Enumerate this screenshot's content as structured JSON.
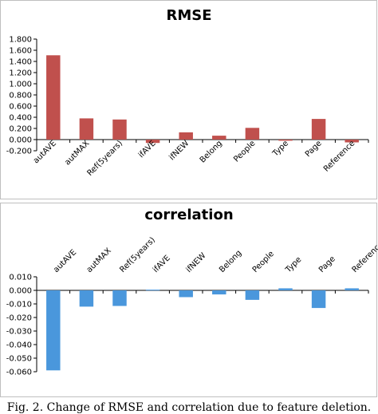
{
  "chart_data": [
    {
      "type": "bar",
      "title": "RMSE",
      "categories": [
        "autAVE",
        "autMAX",
        "Ref(5years)",
        "ifAVE",
        "ifNEW",
        "Belong",
        "People",
        "Type",
        "Page",
        "Reference"
      ],
      "values": [
        1.51,
        0.38,
        0.36,
        -0.06,
        0.13,
        0.07,
        0.21,
        -0.02,
        0.37,
        -0.05
      ],
      "ylim": [
        -0.2,
        1.8
      ],
      "yticks": [
        "1.800",
        "1.600",
        "1.400",
        "1.200",
        "1.000",
        "0.800",
        "0.600",
        "0.400",
        "0.200",
        "0.000",
        "-0.200"
      ],
      "color": "#c0504d",
      "grid": false,
      "legend": "none",
      "xlabel": "",
      "ylabel": ""
    },
    {
      "type": "bar",
      "title": "correlation",
      "categories": [
        "autAVE",
        "autMAX",
        "Ref(5years)",
        "ifAVE",
        "ifNEW",
        "Belong",
        "People",
        "Type",
        "Page",
        "Reference"
      ],
      "values": [
        -0.059,
        -0.012,
        -0.0115,
        0.0005,
        -0.005,
        -0.003,
        -0.007,
        0.0015,
        -0.013,
        0.0015
      ],
      "ylim": [
        -0.06,
        0.01
      ],
      "yticks": [
        "0.010",
        "0.000",
        "-0.010",
        "-0.020",
        "-0.030",
        "-0.040",
        "-0.050",
        "-0.060"
      ],
      "color": "#4a97dc",
      "grid": false,
      "legend": "none",
      "xlabel": "",
      "ylabel": ""
    }
  ],
  "caption": "Fig. 2. Change of RMSE and correlation due to feature deletion."
}
